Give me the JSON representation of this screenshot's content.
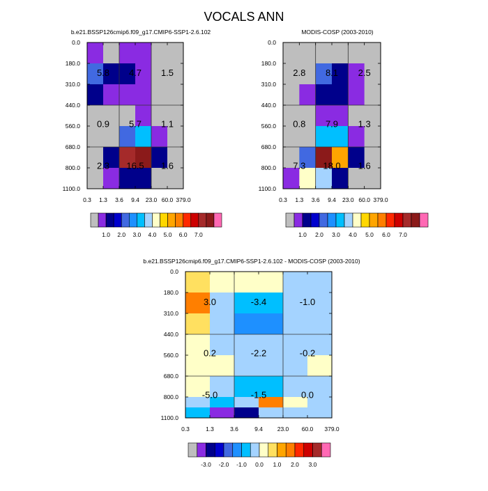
{
  "title": "VOCALS ANN",
  "palettes": {
    "abs": [
      "#bebebe",
      "#8a2be2",
      "#00008b",
      "#0000cd",
      "#4169e1",
      "#1e90ff",
      "#00bfff",
      "#a4d3ff",
      "#ffffc8",
      "#ffd700",
      "#ffa500",
      "#ff7f00",
      "#ff2800",
      "#cd0000",
      "#a52a2a",
      "#8b1a1a",
      "#ff69b4"
    ],
    "diff": [
      "#bebebe",
      "#8a2be2",
      "#00008b",
      "#0000cd",
      "#4169e1",
      "#1e90ff",
      "#00bfff",
      "#a4d3ff",
      "#ffffc8",
      "#ffe060",
      "#ffa500",
      "#ff7f00",
      "#ff2800",
      "#cd0000",
      "#a52a2a",
      "#ff69b4"
    ]
  },
  "chart_data": [
    {
      "type": "heatmap",
      "title": "b.e21.BSSP126cmip6.f09_g17.CMIP6-SSP1-2.6.102",
      "x_tick_labels": [
        "0.3",
        "1.3",
        "3.6",
        "9.4",
        "23.0",
        "60.0",
        "379.0"
      ],
      "y_tick_labels": [
        "0.0",
        "180.0",
        "310.0",
        "440.0",
        "560.0",
        "680.0",
        "800.0",
        "1100.0"
      ],
      "cells": [
        [
          1,
          0,
          1,
          1,
          0,
          0
        ],
        [
          4,
          2,
          2,
          1,
          0,
          0
        ],
        [
          2,
          1,
          1,
          1,
          0,
          0
        ],
        [
          0,
          0,
          0,
          1,
          0,
          0
        ],
        [
          0,
          0,
          4,
          6,
          1,
          0
        ],
        [
          0,
          2,
          14,
          15,
          2,
          0
        ],
        [
          0,
          1,
          2,
          2,
          0,
          0
        ]
      ],
      "block_values": [
        "5.8",
        "4.7",
        "1.5",
        "0.9",
        "5.7",
        "1.1",
        "2.3",
        "16.5",
        "1.6"
      ],
      "colorbar_palette": "abs",
      "colorbar_labels": [
        "1.0",
        "2.0",
        "3.0",
        "4.0",
        "5.0",
        "6.0",
        "7.0"
      ]
    },
    {
      "type": "heatmap",
      "title": "MODIS-COSP (2003-2010)",
      "x_tick_labels": [
        "0.3",
        "1.3",
        "3.6",
        "9.4",
        "23.0",
        "60.0",
        "379.0"
      ],
      "y_tick_labels": [
        "0.0",
        "180.0",
        "310.0",
        "440.0",
        "560.0",
        "680.0",
        "800.0",
        "1100.0"
      ],
      "cells": [
        [
          0,
          0,
          0,
          0,
          0,
          0
        ],
        [
          0,
          0,
          4,
          2,
          1,
          0
        ],
        [
          0,
          1,
          2,
          2,
          1,
          0
        ],
        [
          0,
          0,
          1,
          1,
          0,
          0
        ],
        [
          0,
          0,
          6,
          6,
          1,
          0
        ],
        [
          0,
          4,
          15,
          10,
          2,
          0
        ],
        [
          1,
          8,
          7,
          2,
          0,
          0
        ]
      ],
      "block_values": [
        "2.8",
        "8.1",
        "2.5",
        "0.8",
        "7.9",
        "1.3",
        "7.3",
        "18.0",
        "1.6"
      ],
      "colorbar_palette": "abs",
      "colorbar_labels": [
        "1.0",
        "2.0",
        "3.0",
        "4.0",
        "5.0",
        "6.0",
        "7.0"
      ]
    },
    {
      "type": "heatmap",
      "title": "b.e21.BSSP126cmip6.f09_g17.CMIP6-SSP1-2.6.102 - MODIS-COSP (2003-2010)",
      "x_tick_labels": [
        "0.3",
        "1.3",
        "3.6",
        "9.4",
        "23.0",
        "60.0",
        "379.0"
      ],
      "y_tick_labels": [
        "0.0",
        "180.0",
        "310.0",
        "440.0",
        "560.0",
        "680.0",
        "800.0",
        "1100.0"
      ],
      "cells": [
        [
          9,
          8,
          8,
          8,
          7,
          7
        ],
        [
          11,
          7,
          6,
          6,
          7,
          7
        ],
        [
          9,
          7,
          5,
          5,
          7,
          7
        ],
        [
          8,
          7,
          7,
          7,
          7,
          7
        ],
        [
          8,
          8,
          7,
          7,
          7,
          8
        ],
        [
          8,
          7,
          6,
          6,
          7,
          7
        ],
        [
          7,
          6,
          7,
          11,
          8,
          7
        ],
        [
          6,
          1,
          2,
          7,
          7,
          7
        ]
      ],
      "y_edges_index": [
        0,
        1,
        2,
        3,
        4,
        5,
        6,
        6.5,
        7
      ],
      "block_values": [
        "3.0",
        "-3.4",
        "-1.0",
        "0.2",
        "-2.2",
        "-0.2",
        "-5.0",
        "-1.5",
        "0.0"
      ],
      "colorbar_palette": "diff",
      "colorbar_labels": [
        "-3.0",
        "-2.0",
        "-1.0",
        "0.0",
        "1.0",
        "2.0",
        "3.0"
      ]
    }
  ]
}
